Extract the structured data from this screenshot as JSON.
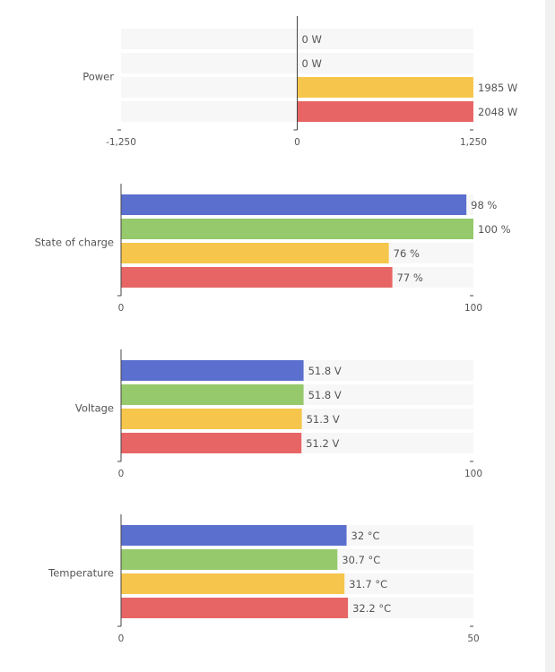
{
  "chart_data": [
    {
      "type": "bar",
      "orientation": "horizontal",
      "categories": [
        "Power"
      ],
      "series": [
        {
          "color": "#5b6fcf",
          "values": [
            0
          ],
          "value_labels": [
            "0 W"
          ]
        },
        {
          "color": "#96c96b",
          "values": [
            0
          ],
          "value_labels": [
            "0 W"
          ]
        },
        {
          "color": "#f6c64c",
          "values": [
            1985
          ],
          "value_labels": [
            "1985 W"
          ]
        },
        {
          "color": "#e86565",
          "values": [
            2048
          ],
          "value_labels": [
            "2048 W"
          ]
        }
      ],
      "xlim": [
        -1250,
        1250
      ],
      "xticks": [
        {
          "value": -1250,
          "label": "-1,250"
        },
        0,
        {
          "value": 1250,
          "label": "1,250"
        }
      ]
    },
    {
      "type": "bar",
      "orientation": "horizontal",
      "categories": [
        "State of charge"
      ],
      "series": [
        {
          "color": "#5b6fcf",
          "values": [
            98
          ],
          "value_labels": [
            "98 %"
          ]
        },
        {
          "color": "#96c96b",
          "values": [
            100
          ],
          "value_labels": [
            "100 %"
          ]
        },
        {
          "color": "#f6c64c",
          "values": [
            76
          ],
          "value_labels": [
            "76 %"
          ]
        },
        {
          "color": "#e86565",
          "values": [
            77
          ],
          "value_labels": [
            "77 %"
          ]
        }
      ],
      "xlim": [
        0,
        100
      ],
      "xticks": [
        0,
        100
      ]
    },
    {
      "type": "bar",
      "orientation": "horizontal",
      "categories": [
        "Voltage"
      ],
      "series": [
        {
          "color": "#5b6fcf",
          "values": [
            51.8
          ],
          "value_labels": [
            "51.8 V"
          ]
        },
        {
          "color": "#96c96b",
          "values": [
            51.8
          ],
          "value_labels": [
            "51.8 V"
          ]
        },
        {
          "color": "#f6c64c",
          "values": [
            51.3
          ],
          "value_labels": [
            "51.3 V"
          ]
        },
        {
          "color": "#e86565",
          "values": [
            51.2
          ],
          "value_labels": [
            "51.2 V"
          ]
        }
      ],
      "xlim": [
        0,
        100
      ],
      "xticks": [
        0,
        100
      ]
    },
    {
      "type": "bar",
      "orientation": "horizontal",
      "categories": [
        "Temperature"
      ],
      "series": [
        {
          "color": "#5b6fcf",
          "values": [
            32
          ],
          "value_labels": [
            "32 °C"
          ]
        },
        {
          "color": "#96c96b",
          "values": [
            30.7
          ],
          "value_labels": [
            "30.7 °C"
          ]
        },
        {
          "color": "#f6c64c",
          "values": [
            31.7
          ],
          "value_labels": [
            "31.7 °C"
          ]
        },
        {
          "color": "#e86565",
          "values": [
            32.2
          ],
          "value_labels": [
            "32.2 °C"
          ]
        }
      ],
      "xlim": [
        0,
        50
      ],
      "xticks": [
        0,
        50
      ]
    }
  ]
}
